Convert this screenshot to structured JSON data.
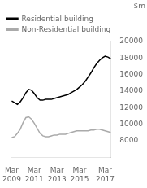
{
  "chart_data": {
    "type": "line",
    "ylabel": "$m",
    "categories": [
      "Mar\n2009",
      null,
      null,
      null,
      null,
      null,
      null,
      null,
      "Mar\n2011",
      null,
      null,
      null,
      null,
      null,
      null,
      null,
      "Mar\n2013",
      null,
      null,
      null,
      null,
      null,
      null,
      null,
      "Mar\n2015",
      null,
      null,
      null,
      null,
      null,
      null,
      null,
      null,
      "Mar\n2017",
      null,
      null
    ],
    "series": [
      {
        "name": "Residential building",
        "color": "#000000",
        "values": [
          12800,
          12600,
          12400,
          12700,
          13200,
          13800,
          14200,
          14100,
          13700,
          13200,
          12900,
          12900,
          13000,
          13000,
          13000,
          13100,
          13200,
          13300,
          13400,
          13500,
          13600,
          13800,
          14000,
          14200,
          14500,
          14800,
          15200,
          15700,
          16200,
          16800,
          17300,
          17700,
          18000,
          18200,
          18100,
          17900
        ]
      },
      {
        "name": "Non-Residential building",
        "color": "#aaaaaa",
        "values": [
          8400,
          8500,
          8900,
          9400,
          10200,
          10800,
          10900,
          10600,
          10100,
          9500,
          8900,
          8600,
          8500,
          8500,
          8600,
          8700,
          8700,
          8800,
          8800,
          8800,
          8900,
          9000,
          9100,
          9200,
          9200,
          9200,
          9200,
          9200,
          9300,
          9300,
          9400,
          9400,
          9300,
          9200,
          9100,
          9000
        ]
      }
    ],
    "ylim": [
      6000,
      20000
    ],
    "yticks": [
      8000,
      10000,
      12000,
      14000,
      16000,
      18000,
      20000
    ],
    "grid": false,
    "legend": "upper left"
  }
}
